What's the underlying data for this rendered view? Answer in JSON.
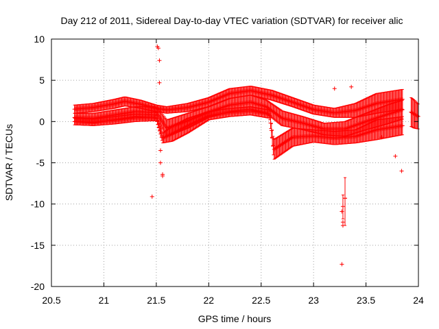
{
  "chart_data": {
    "type": "scatter",
    "title": "Day 212 of 2011, Sidereal Day-to-day VTEC variation (SDTVAR) for receiver alic",
    "xlabel": "GPS time / hours",
    "ylabel": "SDTVAR / TECUs",
    "xlim": [
      20.5,
      24.0
    ],
    "ylim": [
      -20,
      10
    ],
    "xticks": [
      "20.5",
      "21",
      "21.5",
      "22",
      "22.5",
      "23",
      "23.5",
      "24"
    ],
    "yticks": [
      "-20",
      "-15",
      "-10",
      "-5",
      "0",
      "5",
      "10"
    ],
    "grid": true,
    "color": "#ff0000",
    "bands": [
      {
        "name": "upper band",
        "x": [
          20.72,
          20.9,
          21.1,
          21.2,
          21.35,
          21.5,
          21.6,
          21.8,
          22.0,
          22.2,
          22.4,
          22.6,
          22.8,
          23.0,
          23.2,
          23.4,
          23.6,
          23.85
        ],
        "lo": [
          1.0,
          1.2,
          1.6,
          1.9,
          1.6,
          1.2,
          1.0,
          1.2,
          1.8,
          2.8,
          3.2,
          2.6,
          1.8,
          0.9,
          0.5,
          0.5,
          1.0,
          1.5
        ],
        "hi": [
          2.0,
          2.2,
          2.7,
          3.0,
          2.6,
          2.0,
          1.8,
          2.2,
          2.9,
          4.0,
          4.3,
          3.8,
          2.9,
          2.0,
          1.6,
          2.2,
          3.4,
          3.9
        ]
      },
      {
        "name": "middle band",
        "x": [
          20.72,
          20.9,
          21.1,
          21.3,
          21.5,
          21.6,
          21.8,
          22.0,
          22.2,
          22.4,
          22.55,
          22.7,
          22.9,
          23.1,
          23.3,
          23.5,
          23.7,
          23.85
        ],
        "lo": [
          0.0,
          -0.2,
          0.2,
          0.6,
          0.4,
          -1.8,
          -0.8,
          0.5,
          1.2,
          1.5,
          1.0,
          -0.5,
          -1.0,
          -1.6,
          -1.8,
          -1.0,
          -0.3,
          0.3
        ],
        "hi": [
          1.0,
          1.0,
          1.4,
          1.8,
          1.8,
          0.2,
          1.0,
          1.8,
          2.8,
          3.2,
          2.6,
          1.3,
          0.6,
          -0.2,
          0.0,
          1.0,
          2.0,
          2.6
        ]
      },
      {
        "name": "lower band",
        "x": [
          20.72,
          20.9,
          21.1,
          21.3,
          21.5,
          21.56,
          21.65,
          21.8,
          22.0,
          22.2,
          22.4,
          22.58,
          22.62,
          22.8,
          23.0,
          23.2,
          23.4,
          23.6,
          23.85
        ],
        "lo": [
          -0.4,
          -0.5,
          -0.3,
          0.0,
          0.1,
          -2.6,
          -2.4,
          -1.4,
          0.2,
          0.6,
          0.8,
          0.4,
          -4.6,
          -3.0,
          -2.5,
          -2.8,
          -2.6,
          -2.2,
          -1.6
        ],
        "hi": [
          0.4,
          0.3,
          0.6,
          0.9,
          0.8,
          -1.4,
          -0.6,
          0.4,
          1.2,
          1.6,
          1.8,
          1.4,
          -2.2,
          -0.8,
          -1.0,
          -1.2,
          -1.0,
          0.2,
          0.6
        ]
      },
      {
        "name": "late segment",
        "x": [
          23.93,
          23.96,
          24.0
        ],
        "lo": [
          -0.6,
          -0.8,
          -0.9
        ],
        "hi": [
          2.9,
          2.6,
          2.1
        ]
      }
    ],
    "outliers": [
      {
        "x": 21.51,
        "y": 9.1
      },
      {
        "x": 21.52,
        "y": 8.9
      },
      {
        "x": 21.53,
        "y": 7.4
      },
      {
        "x": 21.53,
        "y": 4.7
      },
      {
        "x": 21.54,
        "y": -3.5
      },
      {
        "x": 21.54,
        "y": -5.0
      },
      {
        "x": 21.56,
        "y": -6.4
      },
      {
        "x": 21.56,
        "y": -6.6
      },
      {
        "x": 21.46,
        "y": -9.1
      },
      {
        "x": 23.2,
        "y": 4.0
      },
      {
        "x": 23.36,
        "y": 4.2
      },
      {
        "x": 23.27,
        "y": -10.9
      },
      {
        "x": 23.28,
        "y": -12.2
      },
      {
        "x": 23.28,
        "y": -12.6
      },
      {
        "x": 23.27,
        "y": -17.3
      },
      {
        "x": 23.3,
        "y": -9.3
      },
      {
        "x": 23.78,
        "y": -4.2
      },
      {
        "x": 23.84,
        "y": -6.0
      },
      {
        "x": 23.65,
        "y": -1.9
      }
    ],
    "error_bars": [
      {
        "x": 23.3,
        "y": -9.3,
        "lo": -12.6,
        "hi": -6.8
      },
      {
        "x": 23.28,
        "y": -10.3,
        "lo": -11.8,
        "hi": -8.9
      }
    ]
  }
}
